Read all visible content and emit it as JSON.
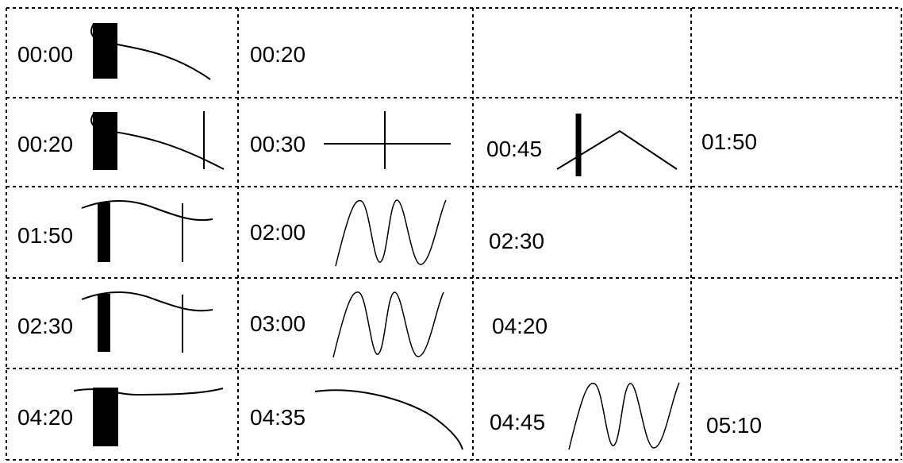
{
  "grid": {
    "rows": [
      {
        "cells": [
          {
            "label": "00:00"
          },
          {
            "label": "00:20"
          },
          {
            "label": ""
          },
          {
            "label": ""
          }
        ]
      },
      {
        "cells": [
          {
            "label": "00:20"
          },
          {
            "label": "00:30"
          },
          {
            "label": "00:45"
          },
          {
            "label": "01:50"
          }
        ]
      },
      {
        "cells": [
          {
            "label": "01:50"
          },
          {
            "label": "02:00"
          },
          {
            "label": "02:30"
          },
          {
            "label": ""
          }
        ]
      },
      {
        "cells": [
          {
            "label": "02:30"
          },
          {
            "label": "03:00"
          },
          {
            "label": "04:20"
          },
          {
            "label": ""
          }
        ]
      },
      {
        "cells": [
          {
            "label": "04:20"
          },
          {
            "label": "04:35"
          },
          {
            "label": "04:45"
          },
          {
            "label": "05:10"
          }
        ]
      }
    ]
  }
}
